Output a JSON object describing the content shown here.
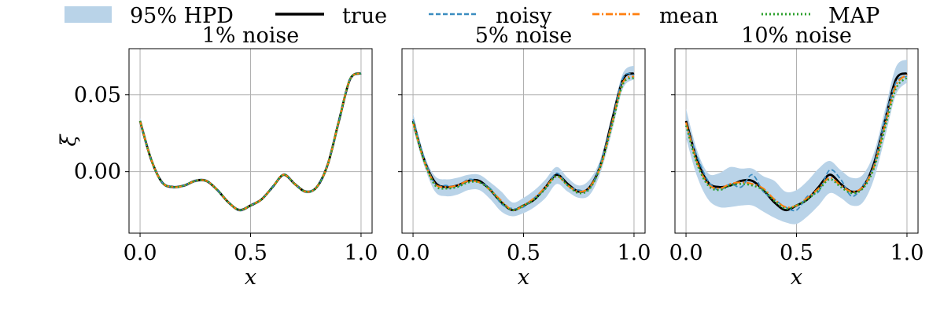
{
  "legend": {
    "items": [
      {
        "label": "95% HPD",
        "style": "band",
        "color": "#b9d3e8"
      },
      {
        "label": "true",
        "style": "solid",
        "color": "#000000"
      },
      {
        "label": "noisy",
        "style": "dashed",
        "color": "#3a8cc0"
      },
      {
        "label": "mean",
        "style": "dashdot",
        "color": "#ff7f0e"
      },
      {
        "label": "MAP",
        "style": "dotted",
        "color": "#2ca02c"
      }
    ]
  },
  "chart_data": [
    {
      "type": "line",
      "title": "1% noise",
      "xlabel": "x",
      "ylabel": "ξ",
      "xlim": [
        -0.05,
        1.05
      ],
      "ylim": [
        -0.04,
        0.08
      ],
      "xticks": [
        "0.0",
        "0.5",
        "1.0"
      ],
      "yticks": [
        "0.05",
        "0.00"
      ],
      "grid": true,
      "x": [
        0.0,
        0.05,
        0.1,
        0.15,
        0.2,
        0.25,
        0.3,
        0.35,
        0.4,
        0.45,
        0.5,
        0.55,
        0.6,
        0.65,
        0.7,
        0.75,
        0.8,
        0.85,
        0.9,
        0.95,
        1.0
      ],
      "series": [
        {
          "name": "true",
          "values": [
            0.033,
            0.008,
            -0.007,
            -0.01,
            -0.009,
            -0.006,
            -0.006,
            -0.012,
            -0.02,
            -0.025,
            -0.022,
            -0.018,
            -0.01,
            -0.002,
            -0.008,
            -0.013,
            -0.01,
            0.005,
            0.033,
            0.06,
            0.064
          ]
        },
        {
          "name": "noisy",
          "values": [
            0.033,
            0.008,
            -0.007,
            -0.01,
            -0.009,
            -0.006,
            -0.006,
            -0.012,
            -0.02,
            -0.025,
            -0.022,
            -0.018,
            -0.01,
            -0.002,
            -0.008,
            -0.013,
            -0.01,
            0.005,
            0.033,
            0.06,
            0.064
          ]
        },
        {
          "name": "mean",
          "values": [
            0.033,
            0.008,
            -0.007,
            -0.01,
            -0.009,
            -0.006,
            -0.006,
            -0.012,
            -0.02,
            -0.025,
            -0.022,
            -0.018,
            -0.01,
            -0.002,
            -0.008,
            -0.013,
            -0.01,
            0.005,
            0.033,
            0.06,
            0.064
          ]
        },
        {
          "name": "MAP",
          "values": [
            0.033,
            0.008,
            -0.007,
            -0.01,
            -0.009,
            -0.006,
            -0.006,
            -0.012,
            -0.02,
            -0.025,
            -0.022,
            -0.018,
            -0.01,
            -0.002,
            -0.008,
            -0.013,
            -0.01,
            0.005,
            0.033,
            0.06,
            0.064
          ]
        }
      ],
      "hpd": {
        "lower": [
          0.031,
          0.007,
          -0.008,
          -0.011,
          -0.01,
          -0.007,
          -0.007,
          -0.013,
          -0.021,
          -0.026,
          -0.023,
          -0.019,
          -0.011,
          -0.003,
          -0.009,
          -0.014,
          -0.011,
          0.004,
          0.032,
          0.059,
          0.063
        ],
        "upper": [
          0.035,
          0.009,
          -0.006,
          -0.009,
          -0.008,
          -0.005,
          -0.005,
          -0.011,
          -0.019,
          -0.024,
          -0.021,
          -0.017,
          -0.009,
          -0.001,
          -0.007,
          -0.012,
          -0.009,
          0.006,
          0.034,
          0.061,
          0.065
        ]
      }
    },
    {
      "type": "line",
      "title": "5% noise",
      "xlabel": "x",
      "ylabel": "",
      "xlim": [
        -0.05,
        1.05
      ],
      "ylim": [
        -0.04,
        0.08
      ],
      "xticks": [
        "0.0",
        "0.5",
        "1.0"
      ],
      "yticks": [
        "",
        ""
      ],
      "grid": true,
      "x": [
        0.0,
        0.05,
        0.1,
        0.15,
        0.2,
        0.25,
        0.3,
        0.35,
        0.4,
        0.45,
        0.5,
        0.55,
        0.6,
        0.65,
        0.7,
        0.75,
        0.8,
        0.85,
        0.9,
        0.95,
        1.0
      ],
      "series": [
        {
          "name": "true",
          "values": [
            0.033,
            0.008,
            -0.007,
            -0.01,
            -0.009,
            -0.006,
            -0.006,
            -0.012,
            -0.02,
            -0.025,
            -0.022,
            -0.018,
            -0.01,
            -0.002,
            -0.008,
            -0.013,
            -0.01,
            0.005,
            0.033,
            0.06,
            0.064
          ]
        },
        {
          "name": "noisy",
          "values": [
            0.034,
            0.009,
            -0.008,
            -0.009,
            -0.01,
            -0.005,
            -0.007,
            -0.011,
            -0.021,
            -0.024,
            -0.023,
            -0.017,
            -0.011,
            -0.001,
            -0.009,
            -0.012,
            -0.011,
            0.006,
            0.032,
            0.061,
            0.063
          ]
        },
        {
          "name": "mean",
          "values": [
            0.032,
            0.007,
            -0.008,
            -0.01,
            -0.009,
            -0.006,
            -0.007,
            -0.012,
            -0.019,
            -0.025,
            -0.022,
            -0.017,
            -0.01,
            -0.003,
            -0.009,
            -0.013,
            -0.01,
            0.004,
            0.031,
            0.058,
            0.062
          ]
        },
        {
          "name": "MAP",
          "values": [
            0.032,
            0.007,
            -0.009,
            -0.011,
            -0.01,
            -0.007,
            -0.007,
            -0.012,
            -0.02,
            -0.025,
            -0.022,
            -0.018,
            -0.011,
            -0.003,
            -0.009,
            -0.014,
            -0.011,
            0.004,
            0.03,
            0.057,
            0.061
          ]
        }
      ],
      "hpd": {
        "lower": [
          0.028,
          0.004,
          -0.013,
          -0.016,
          -0.015,
          -0.012,
          -0.012,
          -0.018,
          -0.026,
          -0.029,
          -0.027,
          -0.023,
          -0.017,
          -0.008,
          -0.013,
          -0.017,
          -0.015,
          0.0,
          0.026,
          0.054,
          0.06
        ],
        "upper": [
          0.038,
          0.011,
          -0.003,
          -0.005,
          -0.004,
          -0.002,
          -0.002,
          -0.007,
          -0.013,
          -0.02,
          -0.017,
          -0.012,
          -0.005,
          0.003,
          -0.004,
          -0.009,
          -0.005,
          0.009,
          0.037,
          0.064,
          0.069
        ]
      }
    },
    {
      "type": "line",
      "title": "10% noise",
      "xlabel": "x",
      "ylabel": "",
      "xlim": [
        -0.05,
        1.05
      ],
      "ylim": [
        -0.04,
        0.08
      ],
      "xticks": [
        "0.0",
        "0.5",
        "1.0"
      ],
      "yticks": [
        "",
        ""
      ],
      "grid": true,
      "x": [
        0.0,
        0.05,
        0.1,
        0.15,
        0.2,
        0.25,
        0.3,
        0.35,
        0.4,
        0.45,
        0.5,
        0.55,
        0.6,
        0.65,
        0.7,
        0.75,
        0.8,
        0.85,
        0.9,
        0.95,
        1.0
      ],
      "series": [
        {
          "name": "true",
          "values": [
            0.033,
            0.008,
            -0.007,
            -0.01,
            -0.009,
            -0.006,
            -0.006,
            -0.012,
            -0.02,
            -0.025,
            -0.022,
            -0.018,
            -0.01,
            -0.002,
            -0.008,
            -0.013,
            -0.01,
            0.005,
            0.033,
            0.06,
            0.064
          ]
        },
        {
          "name": "noisy",
          "values": [
            0.031,
            0.01,
            -0.006,
            -0.012,
            -0.008,
            -0.01,
            -0.002,
            -0.013,
            -0.018,
            -0.023,
            -0.025,
            -0.016,
            -0.013,
            0.001,
            -0.005,
            -0.016,
            -0.009,
            0.004,
            0.034,
            0.058,
            0.062
          ]
        },
        {
          "name": "mean",
          "values": [
            0.032,
            0.006,
            -0.008,
            -0.011,
            -0.008,
            -0.007,
            -0.008,
            -0.011,
            -0.018,
            -0.023,
            -0.022,
            -0.017,
            -0.011,
            -0.004,
            -0.009,
            -0.013,
            -0.01,
            0.003,
            0.03,
            0.056,
            0.063
          ]
        },
        {
          "name": "MAP",
          "values": [
            0.03,
            0.005,
            -0.009,
            -0.012,
            -0.009,
            -0.008,
            -0.009,
            -0.012,
            -0.019,
            -0.024,
            -0.022,
            -0.018,
            -0.012,
            -0.005,
            -0.01,
            -0.014,
            -0.011,
            0.002,
            0.028,
            0.054,
            0.061
          ]
        }
      ],
      "hpd": {
        "lower": [
          0.022,
          -0.003,
          -0.018,
          -0.023,
          -0.023,
          -0.022,
          -0.022,
          -0.026,
          -0.03,
          -0.033,
          -0.034,
          -0.029,
          -0.022,
          -0.014,
          -0.017,
          -0.022,
          -0.02,
          -0.005,
          0.022,
          0.05,
          0.058
        ],
        "upper": [
          0.041,
          0.014,
          -0.001,
          -0.001,
          0.003,
          0.002,
          0.002,
          -0.003,
          -0.006,
          -0.013,
          -0.012,
          -0.006,
          0.002,
          0.007,
          0.001,
          -0.004,
          -0.002,
          0.012,
          0.04,
          0.068,
          0.073
        ]
      }
    }
  ]
}
